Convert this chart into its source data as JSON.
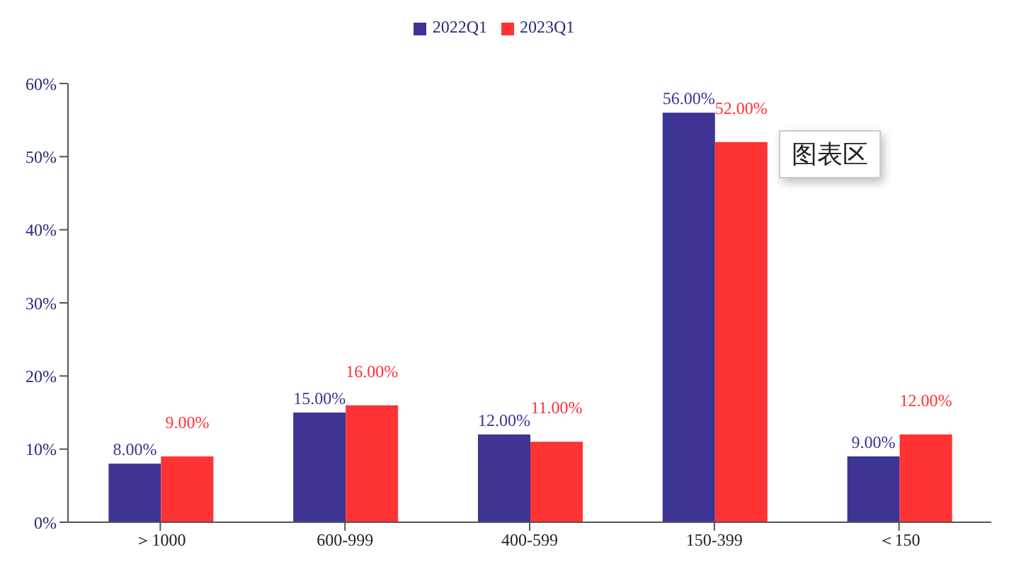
{
  "chart_data": {
    "type": "bar",
    "categories": [
      "＞1000",
      "600-999",
      "400-599",
      "150-399",
      "＜150"
    ],
    "series": [
      {
        "name": "2022Q1",
        "color": "#3d3494",
        "values": [
          8,
          15,
          12,
          56,
          9
        ],
        "value_labels": [
          "8.00%",
          "15.00%",
          "12.00%",
          "56.00%",
          "9.00%"
        ]
      },
      {
        "name": "2023Q1",
        "color": "#ff3333",
        "values": [
          9,
          16,
          11,
          52,
          12
        ],
        "value_labels": [
          "9.00%",
          "16.00%",
          "11.00%",
          "52.00%",
          "12.00%"
        ]
      }
    ],
    "ylim": [
      0,
      60
    ],
    "yticks": [
      {
        "value": 0,
        "label": "0%"
      },
      {
        "value": 10,
        "label": "10%"
      },
      {
        "value": 20,
        "label": "20%"
      },
      {
        "value": 30,
        "label": "30%"
      },
      {
        "value": 40,
        "label": "40%"
      },
      {
        "value": 50,
        "label": "50%"
      },
      {
        "value": 60,
        "label": "60%"
      }
    ],
    "grid": false,
    "legend": "top",
    "annotations": [
      "图表区"
    ]
  }
}
